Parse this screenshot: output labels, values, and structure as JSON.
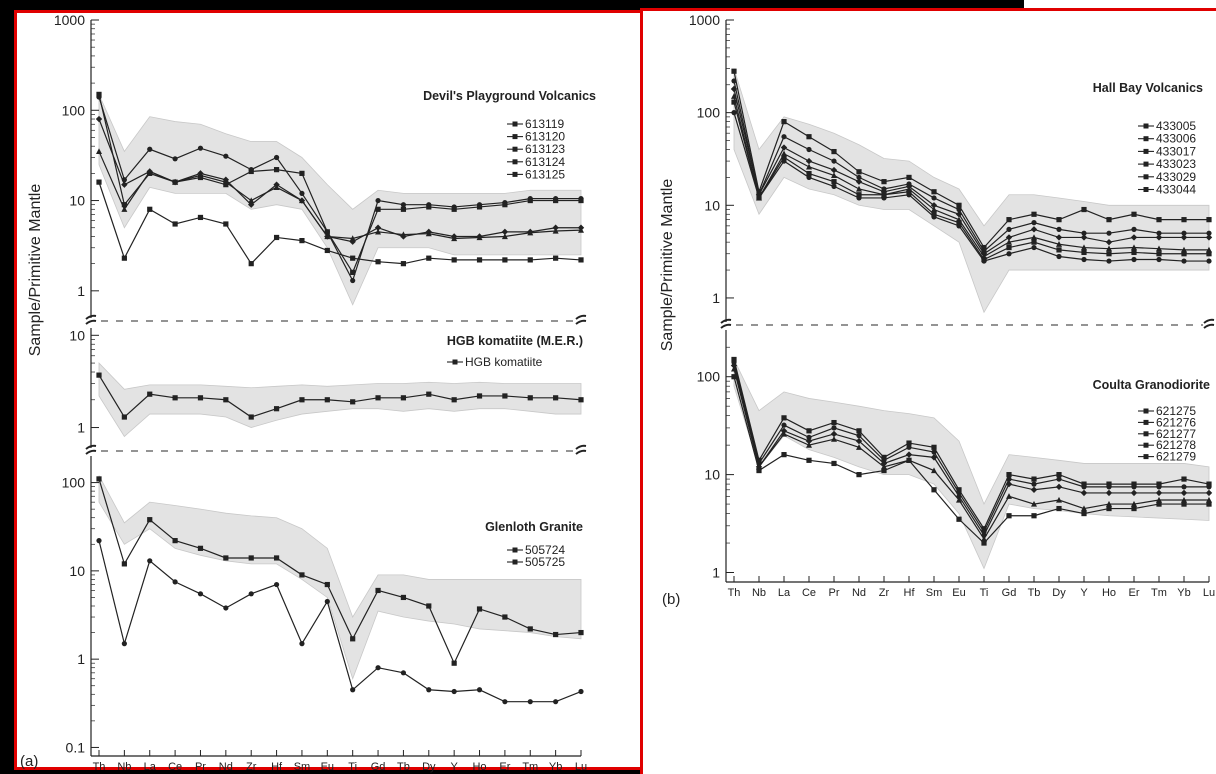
{
  "colors": {
    "frame": "#e00000",
    "band": "#e3e3e3",
    "line": "#222222"
  },
  "ytitle": "Sample/Primitive Mantle",
  "elements_a": [
    "Th",
    "Nb",
    "La",
    "Ce",
    "Pr",
    "Nd",
    "Zr",
    "Hf",
    "Sm",
    "Eu",
    "Ti",
    "Gd",
    "Tb",
    "Dy",
    "Y",
    "Ho",
    "Er",
    "Tm",
    "Yb",
    "Lu"
  ],
  "elements_b": [
    "Th",
    "Nb",
    "La",
    "Ce",
    "Pr",
    "Nd",
    "Zr",
    "Hf",
    "Sm",
    "Eu",
    "Ti",
    "Gd",
    "Tb",
    "Dy",
    "Y",
    "Ho",
    "Er",
    "Tm",
    "Yb",
    "Lu"
  ],
  "panel_labels": {
    "a": "(a)",
    "b": "(b)"
  },
  "chart_data": [
    {
      "type": "line",
      "title": "Devil's Playground Volcanics",
      "ylabel": "Sample/Primitive Mantle",
      "yscale": "log",
      "ticks": [
        "1000",
        "100",
        "10",
        "1"
      ],
      "categories": [
        "Th",
        "Nb",
        "La",
        "Ce",
        "Pr",
        "Nd",
        "Zr",
        "Hf",
        "Sm",
        "Eu",
        "Ti",
        "Gd",
        "Tb",
        "Dy",
        "Y",
        "Ho",
        "Er",
        "Tm",
        "Yb",
        "Lu"
      ],
      "band_upper": [
        150,
        35,
        85,
        75,
        70,
        55,
        45,
        45,
        30,
        15,
        8,
        13,
        12,
        12,
        12,
        12,
        12,
        13,
        13,
        13
      ],
      "band_lower": [
        25,
        5,
        14,
        12,
        12,
        12,
        8,
        9,
        8,
        3,
        0.7,
        3,
        3,
        3,
        2.5,
        2.5,
        2.5,
        2.5,
        2.5,
        2.5
      ],
      "series": [
        {
          "name": "613119",
          "values": [
            150,
            9,
            20,
            16,
            18,
            15,
            21,
            22,
            20,
            4.5,
            1.6,
            8,
            8,
            8.5,
            8,
            8.5,
            9,
            10,
            10,
            10
          ]
        },
        {
          "name": "613120",
          "values": [
            140,
            17,
            37,
            29,
            38,
            31,
            22,
            30,
            12,
            4.5,
            1.3,
            10,
            9,
            9,
            8.5,
            9,
            9.5,
            10.5,
            10.5,
            10.5
          ]
        },
        {
          "name": "613123",
          "values": [
            80,
            15,
            21,
            16,
            20,
            17,
            9,
            15,
            10,
            4,
            3.5,
            5,
            4,
            4.5,
            4,
            4,
            4.5,
            4.5,
            5,
            5
          ]
        },
        {
          "name": "613124",
          "values": [
            35,
            8,
            21,
            16,
            19,
            16,
            10,
            14,
            10,
            4,
            3.8,
            4.5,
            4.2,
            4.3,
            3.8,
            3.9,
            4,
            4.4,
            4.6,
            4.7
          ]
        },
        {
          "name": "613125",
          "values": [
            16,
            2.3,
            8,
            5.5,
            6.5,
            5.5,
            2,
            3.9,
            3.6,
            2.8,
            2.3,
            2.1,
            2,
            2.3,
            2.2,
            2.2,
            2.2,
            2.2,
            2.3,
            2.2
          ]
        }
      ]
    },
    {
      "type": "line",
      "title": "HGB komatiite (M.E.R.)",
      "ylabel": "Sample/Primitive Mantle",
      "yscale": "log",
      "ticks": [
        "10",
        "1"
      ],
      "categories": [
        "Th",
        "Nb",
        "La",
        "Ce",
        "Pr",
        "Nd",
        "Zr",
        "Hf",
        "Sm",
        "Eu",
        "Ti",
        "Gd",
        "Tb",
        "Dy",
        "Y",
        "Ho",
        "Er",
        "Tm",
        "Yb",
        "Lu"
      ],
      "band_upper": [
        5,
        2.6,
        2.9,
        2.9,
        2.9,
        2.8,
        2.7,
        2.8,
        2.9,
        2.8,
        2.9,
        3,
        3,
        3.1,
        3,
        3.1,
        3,
        3,
        3,
        3
      ],
      "band_lower": [
        2.2,
        0.8,
        1.4,
        1.4,
        1.4,
        1.3,
        1,
        1.2,
        1.4,
        1.5,
        1.6,
        1.6,
        1.5,
        1.6,
        1.5,
        1.6,
        1.6,
        1.5,
        1.4,
        1.4
      ],
      "series": [
        {
          "name": "HGB komatiite",
          "values": [
            3.7,
            1.3,
            2.3,
            2.1,
            2.1,
            2,
            1.3,
            1.6,
            2,
            2,
            1.9,
            2.1,
            2.1,
            2.3,
            2,
            2.2,
            2.2,
            2.1,
            2.1,
            2
          ]
        }
      ]
    },
    {
      "type": "line",
      "title": "Glenloth Granite",
      "ylabel": "Sample/Primitive Mantle",
      "yscale": "log",
      "ticks": [
        "100",
        "10",
        "1",
        "0.1"
      ],
      "categories": [
        "Th",
        "Nb",
        "La",
        "Ce",
        "Pr",
        "Nd",
        "Zr",
        "Hf",
        "Sm",
        "Eu",
        "Ti",
        "Gd",
        "Tb",
        "Dy",
        "Y",
        "Ho",
        "Er",
        "Tm",
        "Yb",
        "Lu"
      ],
      "band_upper": [
        120,
        35,
        60,
        55,
        50,
        45,
        42,
        40,
        30,
        18,
        3,
        9,
        9,
        8,
        8,
        8,
        8,
        8,
        8,
        8
      ],
      "band_lower": [
        60,
        20,
        30,
        18,
        15,
        13,
        12,
        12,
        8,
        5,
        0.6,
        3.5,
        3,
        2.7,
        2.5,
        2.2,
        2.1,
        2,
        1.8,
        1.7
      ],
      "series": [
        {
          "name": "505724",
          "values": [
            110,
            12,
            38,
            22,
            18,
            14,
            14,
            14,
            9,
            7,
            1.7,
            6,
            5,
            4,
            0.9,
            3.7,
            3,
            2.2,
            1.9,
            2
          ]
        },
        {
          "name": "505725",
          "values": [
            22,
            1.5,
            13,
            7.5,
            5.5,
            3.8,
            5.5,
            7,
            1.5,
            4.5,
            0.45,
            0.8,
            0.7,
            0.45,
            0.43,
            0.45,
            0.33,
            0.33,
            0.33,
            0.43
          ]
        }
      ]
    },
    {
      "type": "line",
      "title": "Hall Bay Volcanics",
      "ylabel": "Sample/Primitive Mantle",
      "yscale": "log",
      "ticks": [
        "1000",
        "100",
        "10",
        "1"
      ],
      "categories": [
        "Th",
        "Nb",
        "La",
        "Ce",
        "Pr",
        "Nd",
        "Zr",
        "Hf",
        "Sm",
        "Eu",
        "Ti",
        "Gd",
        "Tb",
        "Dy",
        "Y",
        "Ho",
        "Er",
        "Tm",
        "Yb",
        "Lu"
      ],
      "band_upper": [
        300,
        40,
        90,
        75,
        60,
        45,
        32,
        30,
        20,
        15,
        6,
        13,
        13,
        12,
        11,
        10,
        10,
        10,
        10,
        10
      ],
      "band_lower": [
        40,
        8,
        20,
        15,
        13,
        10,
        9,
        9,
        6,
        4,
        0.7,
        2,
        2,
        2,
        2,
        2,
        2,
        2,
        2,
        2
      ],
      "series": [
        {
          "name": "433005",
          "values": [
            280,
            14,
            80,
            55,
            38,
            23,
            18,
            20,
            14,
            10,
            3.5,
            7,
            8,
            7,
            9,
            7,
            8,
            7,
            7,
            7
          ]
        },
        {
          "name": "433006",
          "values": [
            220,
            13,
            55,
            40,
            30,
            20,
            15,
            17,
            12,
            9,
            3.2,
            5.5,
            6.5,
            5.5,
            5,
            5,
            5.5,
            5,
            5,
            5
          ]
        },
        {
          "name": "433017",
          "values": [
            180,
            13,
            42,
            30,
            24,
            18,
            14,
            16,
            10,
            8,
            3,
            4.5,
            5.5,
            4.5,
            4.5,
            4,
            4.5,
            4.5,
            4.5,
            4.5
          ]
        },
        {
          "name": "433023",
          "values": [
            150,
            12,
            36,
            26,
            21,
            15,
            13,
            15,
            9,
            7,
            2.8,
            4,
            4.5,
            3.8,
            3.5,
            3.4,
            3.5,
            3.4,
            3.3,
            3.3
          ]
        },
        {
          "name": "433029",
          "values": [
            130,
            12,
            33,
            22,
            18,
            13,
            13,
            14,
            8,
            6.5,
            2.6,
            3.5,
            4,
            3.3,
            3.1,
            3,
            3.1,
            3,
            3,
            3
          ]
        },
        {
          "name": "433044",
          "values": [
            100,
            12,
            30,
            20,
            16,
            12,
            12,
            13,
            7.5,
            6,
            2.5,
            3,
            3.5,
            2.8,
            2.6,
            2.5,
            2.6,
            2.6,
            2.5,
            2.5
          ]
        }
      ]
    },
    {
      "type": "line",
      "title": "Coulta Granodiorite",
      "ylabel": "Sample/Primitive Mantle",
      "yscale": "log",
      "ticks": [
        "100",
        "10",
        "1"
      ],
      "categories": [
        "Th",
        "Nb",
        "La",
        "Ce",
        "Pr",
        "Nd",
        "Zr",
        "Hf",
        "Sm",
        "Eu",
        "Ti",
        "Gd",
        "Tb",
        "Dy",
        "Y",
        "Ho",
        "Er",
        "Tm",
        "Yb",
        "Lu"
      ],
      "band_upper": [
        150,
        45,
        70,
        60,
        55,
        50,
        45,
        42,
        38,
        22,
        5,
        16,
        15,
        14,
        13,
        13,
        13,
        13,
        13,
        12
      ],
      "band_lower": [
        80,
        12,
        25,
        18,
        15,
        12,
        10,
        10,
        8,
        4,
        1.1,
        5,
        4.5,
        4.3,
        4,
        3.8,
        3.7,
        3.6,
        3.5,
        3.4
      ],
      "series": [
        {
          "name": "621275",
          "values": [
            150,
            14,
            38,
            28,
            34,
            28,
            15,
            21,
            19,
            7,
            2.8,
            10,
            9,
            10,
            8,
            8,
            8,
            8,
            9,
            8
          ]
        },
        {
          "name": "621276",
          "values": [
            140,
            13,
            32,
            24,
            30,
            25,
            14,
            19,
            17,
            6.5,
            2.6,
            9,
            8,
            9,
            7.5,
            7.5,
            7.5,
            7.5,
            7.5,
            7.5
          ]
        },
        {
          "name": "621277",
          "values": [
            130,
            12,
            28,
            22,
            26,
            22,
            13,
            16,
            15,
            6,
            2.4,
            8,
            7,
            7.5,
            6.5,
            6.5,
            6.5,
            6.5,
            6.5,
            6.5
          ]
        },
        {
          "name": "621278",
          "values": [
            120,
            12,
            26,
            20,
            23,
            19,
            12,
            14,
            11,
            5.5,
            2.2,
            6,
            5,
            5.5,
            4.5,
            5,
            5,
            5.5,
            5.5,
            5.5
          ]
        },
        {
          "name": "621279",
          "values": [
            100,
            11,
            16,
            14,
            13,
            10,
            11,
            14,
            7,
            3.5,
            2,
            3.8,
            3.8,
            4.5,
            4,
            4.5,
            4.5,
            5,
            5,
            5
          ]
        }
      ]
    }
  ]
}
